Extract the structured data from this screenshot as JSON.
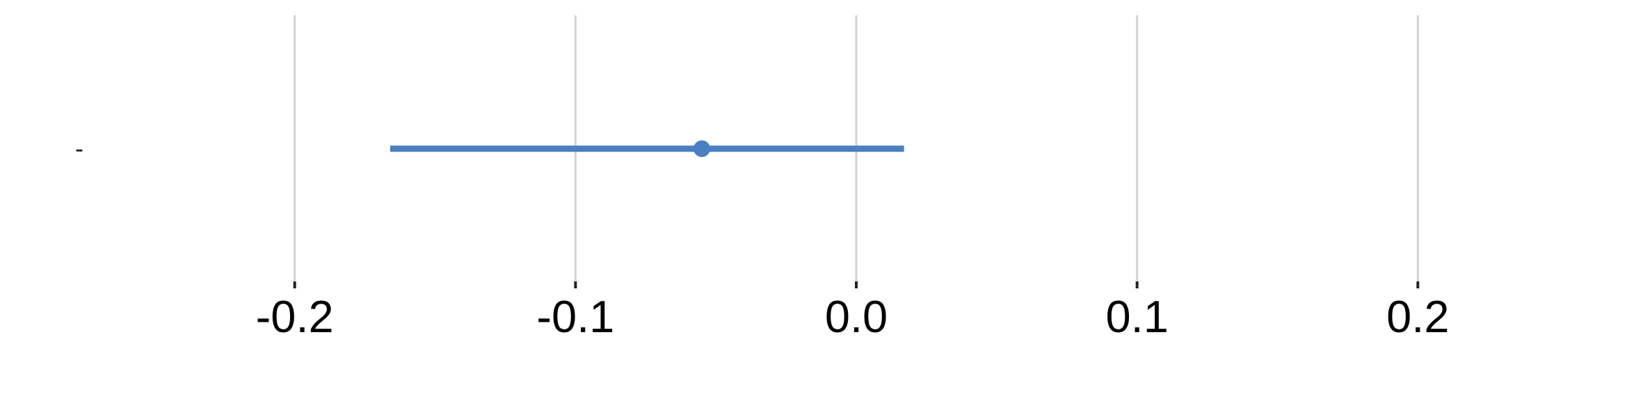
{
  "chart_data": {
    "type": "forest",
    "xlim": [
      -0.3,
      0.3
    ],
    "xticks": [
      -0.2,
      -0.1,
      0.0,
      0.1,
      0.2
    ],
    "xtick_labels": [
      "-0.2",
      "-0.1",
      "0.0",
      "0.1",
      "0.2"
    ],
    "grid": "vertical",
    "rows": [
      {
        "label": "-",
        "estimate": -0.055,
        "lower": -0.166,
        "upper": 0.017
      }
    ],
    "colors": {
      "series": "#4a7fc1",
      "grid": "#d3d3d3",
      "tick": "#222222"
    }
  }
}
